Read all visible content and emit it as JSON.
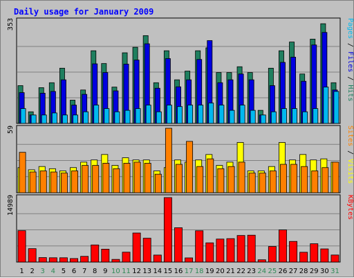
{
  "chart_data": {
    "type": "bar",
    "title": "Daily usage for January 2009",
    "categories": [
      "1",
      "2",
      "3",
      "4",
      "5",
      "6",
      "7",
      "8",
      "9",
      "10",
      "11",
      "12",
      "13",
      "14",
      "15",
      "16",
      "17",
      "18",
      "19",
      "20",
      "21",
      "22",
      "23",
      "24",
      "25",
      "26",
      "27",
      "28",
      "29",
      "30",
      "31"
    ],
    "weekend_days": [
      "3",
      "4",
      "10",
      "11",
      "17",
      "18",
      "24",
      "25",
      "31"
    ],
    "colors": {
      "hits": "#1f7f5f",
      "files": "#0000e0",
      "pages": "#00b8f0",
      "visits": "#ffff00",
      "sites": "#ff8000",
      "kbytes": "#ff0000",
      "title": "#0000ff",
      "weekday": "#000000",
      "weekend": "#2e8b57"
    },
    "panels": [
      {
        "id": "top",
        "max_label": "353",
        "ymax": 353,
        "legend": [
          {
            "text": "Pages",
            "color": "#00b8f0"
          },
          {
            "text": " / ",
            "color": "#000000"
          },
          {
            "text": "Files",
            "color": "#0000e0"
          },
          {
            "text": " / ",
            "color": "#000000"
          },
          {
            "text": "Hits",
            "color": "#1f7f5f"
          }
        ],
        "series": [
          {
            "name": "Hits",
            "color": "#1f7f5f",
            "values": [
              130,
              40,
              123,
              140,
              190,
              80,
              115,
              250,
              206,
              125,
              243,
              262,
              302,
              140,
              250,
              150,
              180,
              250,
              260,
              175,
              175,
              195,
              175,
              45,
              190,
              250,
              280,
              170,
              290,
              343,
              140
            ]
          },
          {
            "name": "Files",
            "color": "#0000e0",
            "values": [
              106,
              29,
              104,
              110,
              150,
              63,
              100,
              205,
              175,
              112,
              204,
              218,
              274,
              121,
              223,
              126,
              150,
              220,
              285,
              140,
              150,
              170,
              150,
              29,
              130,
              210,
              228,
              145,
              270,
              313,
              115
            ]
          },
          {
            "name": "Pages",
            "color": "#00b8f0",
            "values": [
              51,
              29,
              29,
              36,
              29,
              29,
              40,
              63,
              51,
              40,
              45,
              51,
              63,
              40,
              63,
              58,
              63,
              63,
              70,
              63,
              45,
              63,
              45,
              29,
              40,
              51,
              51,
              40,
              51,
              125,
              110
            ]
          }
        ]
      },
      {
        "id": "mid",
        "max_label": "59",
        "ymax": 59,
        "legend": [
          {
            "text": "Sites",
            "color": "#ff8000"
          },
          {
            "text": " / ",
            "color": "#000000"
          },
          {
            "text": "Visits",
            "color": "#ffff00"
          }
        ],
        "series": [
          {
            "name": "Visits",
            "color": "#ffff00",
            "values": [
              23,
              21,
              24,
              22,
              20,
              23,
              28,
              30,
              35,
              25,
              32,
              30,
              30,
              20,
              23,
              30,
              28,
              30,
              35,
              25,
              28,
              46,
              20,
              20,
              24,
              46,
              30,
              35,
              30,
              31,
              28
            ]
          },
          {
            "name": "Sites",
            "color": "#ff8000",
            "values": [
              37,
              19,
              20,
              19,
              18,
              20,
              25,
              25,
              27,
              22,
              27,
              28,
              27,
              17,
              59,
              26,
              47,
              24,
              31,
              22,
              24,
              28,
              18,
              18,
              20,
              26,
              26,
              24,
              20,
              23,
              28
            ]
          }
        ]
      },
      {
        "id": "bot",
        "max_label": "14989",
        "ymax": 14989,
        "legend": [
          {
            "text": "KBytes",
            "color": "#ff0000"
          }
        ],
        "series": [
          {
            "name": "KBytes",
            "color": "#ff0000",
            "values": [
              7300,
              3120,
              1040,
              1000,
              1000,
              820,
              1330,
              3980,
              3000,
              620,
              2300,
              6760,
              5550,
              1630,
              14989,
              7980,
              970,
              7280,
              4470,
              5350,
              5450,
              6180,
              6250,
              530,
              3620,
              7480,
              4800,
              2280,
              4260,
              3060,
              1640
            ]
          }
        ]
      }
    ]
  }
}
